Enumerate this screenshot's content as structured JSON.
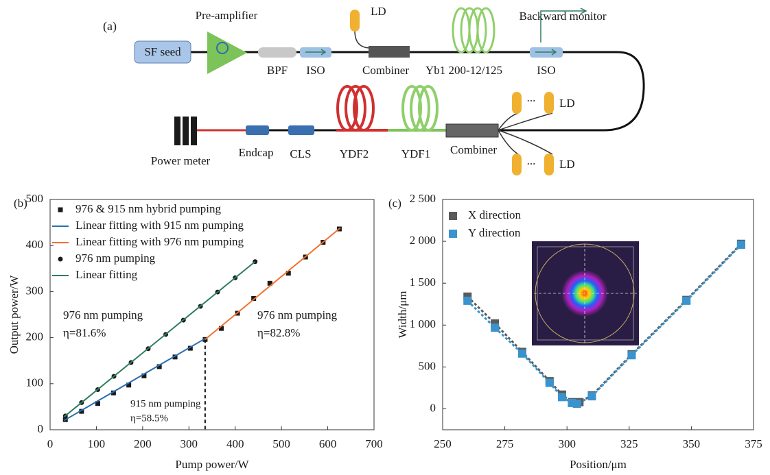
{
  "diagram": {
    "panel": "(a)",
    "labels": [
      "Pre-amplifier",
      "SF seed",
      "BPF",
      "ISO",
      "LD",
      "Combiner",
      "Yb1 200-12/125",
      "Backward monitor",
      "ISO",
      "LD",
      "LD",
      "...",
      "...",
      "Power meter",
      "Endcap",
      "CLS",
      "YDF2",
      "YDF1",
      "Combiner"
    ]
  },
  "chart_data": [
    {
      "type": "line",
      "panel": "(b)",
      "xlabel": "Pump power/W",
      "ylabel": "Output power/W",
      "xlim": [
        0,
        700
      ],
      "xticks": [
        0,
        100,
        200,
        300,
        400,
        500,
        600,
        700
      ],
      "ylim": [
        0,
        500
      ],
      "yticks": [
        0,
        100,
        200,
        300,
        400,
        500
      ],
      "series": [
        {
          "name": "976 & 915 nm hybrid pumping",
          "color": "#1a1a1a",
          "marker": "square",
          "x": [
            33,
            68,
            103,
            137,
            170,
            203,
            236,
            270,
            303,
            335,
            370,
            405,
            440,
            475,
            515,
            552,
            590,
            625
          ],
          "values": [
            22,
            40,
            57,
            80,
            97,
            117,
            137,
            158,
            177,
            196,
            220,
            253,
            285,
            318,
            340,
            375,
            407,
            436
          ]
        },
        {
          "name": "Linear fitting with 915 nm pumping",
          "color": "#2a6fb0",
          "line": "solid",
          "x": [
            30,
            335
          ],
          "values": [
            20,
            198
          ]
        },
        {
          "name": "Linear fitting with 976 nm pumping",
          "color": "#f07030",
          "line": "solid",
          "x": [
            335,
            627
          ],
          "values": [
            196,
            438
          ]
        },
        {
          "name": "976 nm pumping",
          "color": "#1a1a1a",
          "marker": "circle",
          "x": [
            33,
            68,
            103,
            138,
            175,
            212,
            250,
            288,
            325,
            362,
            400,
            443
          ],
          "values": [
            30,
            59,
            87,
            116,
            146,
            176,
            207,
            238,
            268,
            299,
            330,
            365
          ]
        },
        {
          "name": "Linear fitting",
          "color": "#2e7d5e",
          "line": "solid",
          "x": [
            30,
            443
          ],
          "values": [
            28,
            365
          ]
        }
      ],
      "reference_line": {
        "x": 335,
        "y": 196
      },
      "annotations": [
        {
          "text": "976 nm pumping",
          "color": "#2e7d5e"
        },
        {
          "text": "η=81.6%",
          "color": "#2e7d5e"
        },
        {
          "text": "976 nm pumping",
          "color": "#f07030"
        },
        {
          "text": "η=82.8%",
          "color": "#f07030"
        },
        {
          "text": "915 nm pumping",
          "color": "#3a9ad9"
        },
        {
          "text": "η=58.5%",
          "color": "#3a9ad9"
        }
      ]
    },
    {
      "type": "line",
      "panel": "(c)",
      "xlabel": "Position/μm",
      "ylabel": "Width/μm",
      "xlim": [
        250,
        375
      ],
      "xticks": [
        250,
        275,
        300,
        325,
        350,
        375
      ],
      "ylim": [
        -250,
        2500
      ],
      "yticks": [
        0,
        500,
        {
          "value": 1000,
          "label": "1 000"
        },
        {
          "value": 1500,
          "label": "1 500"
        },
        {
          "value": 2000,
          "label": "2 000"
        },
        {
          "value": 2500,
          "label": "2 500"
        }
      ],
      "series": [
        {
          "name": "X direction",
          "color": "#5a5a5a",
          "marker": "square",
          "line": "dashed",
          "x": [
            260,
            271,
            282,
            293,
            298,
            302,
            305,
            310,
            326,
            348,
            370
          ],
          "values": [
            1340,
            1020,
            680,
            330,
            170,
            80,
            80,
            160,
            650,
            1300,
            1970
          ]
        },
        {
          "name": "Y direction",
          "color": "#3a93cc",
          "marker": "square",
          "line": "dashed",
          "x": [
            260,
            271,
            282,
            293,
            298,
            302,
            304,
            310,
            326,
            348,
            370
          ],
          "values": [
            1290,
            970,
            660,
            310,
            140,
            70,
            60,
            150,
            640,
            1290,
            1960
          ]
        }
      ]
    }
  ]
}
